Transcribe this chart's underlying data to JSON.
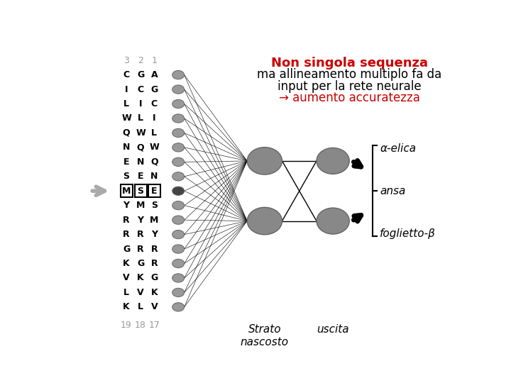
{
  "title_line1": "Non singola sequenza",
  "title_line2": "ma allineamento multiplo fa da",
  "title_line3": "input per la rete neurale",
  "title_line4": "→ aumento accuratezza",
  "title_color1": "#cc0000",
  "title_color2": "#000000",
  "title_color4": "#cc0000",
  "columns_header": [
    "3",
    "2",
    "1"
  ],
  "rows": [
    [
      "C",
      "G",
      "A"
    ],
    [
      "I",
      "C",
      "G"
    ],
    [
      "L",
      "I",
      "C"
    ],
    [
      "W",
      "L",
      "I"
    ],
    [
      "Q",
      "W",
      "L"
    ],
    [
      "N",
      "Q",
      "W"
    ],
    [
      "E",
      "N",
      "Q"
    ],
    [
      "S",
      "E",
      "N"
    ],
    [
      "M",
      "S",
      "E"
    ],
    [
      "Y",
      "M",
      "S"
    ],
    [
      "R",
      "Y",
      "M"
    ],
    [
      "R",
      "R",
      "Y"
    ],
    [
      "G",
      "R",
      "R"
    ],
    [
      "K",
      "G",
      "R"
    ],
    [
      "V",
      "K",
      "G"
    ],
    [
      "L",
      "V",
      "K"
    ],
    [
      "K",
      "L",
      "V"
    ]
  ],
  "highlighted_row": 8,
  "footer_numbers": [
    "19",
    "18",
    "17"
  ],
  "output_labels": [
    "α-elica",
    "ansa",
    "foglietto-β"
  ],
  "label_hidden": "Strato\nnascosto",
  "label_output": "uscita",
  "bg_color": "#ffffff",
  "node_color_input": "#999999",
  "node_color_dark": "#444444",
  "node_color_hidden": "#888888",
  "node_color_output": "#888888",
  "node_edge_color": "#666666"
}
